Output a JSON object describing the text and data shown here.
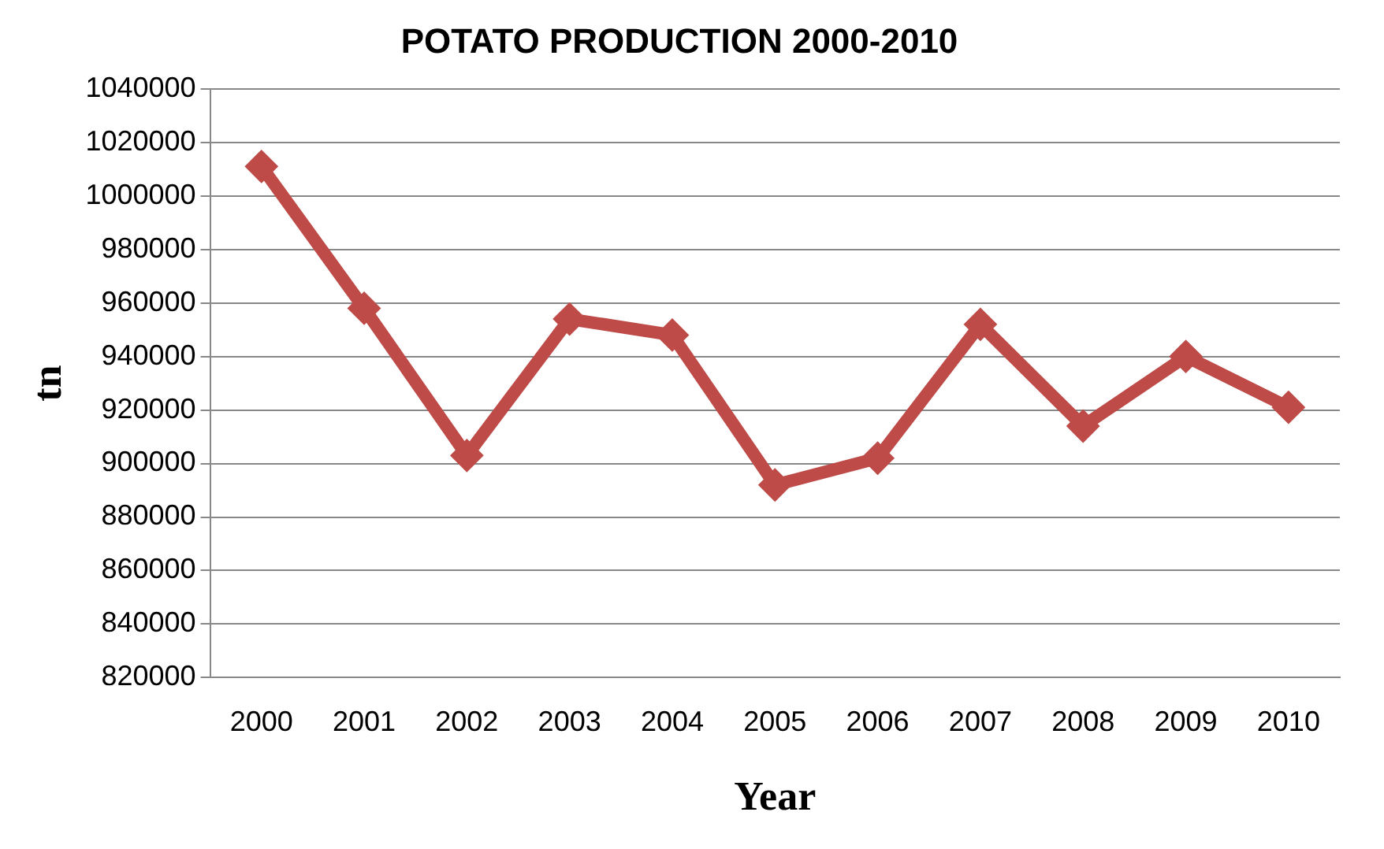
{
  "chart_data": {
    "type": "line",
    "title": "POTATO PRODUCTION 2000-2010",
    "xlabel": "Year",
    "ylabel": "tn",
    "categories": [
      "2000",
      "2001",
      "2002",
      "2003",
      "2004",
      "2005",
      "2006",
      "2007",
      "2008",
      "2009",
      "2010"
    ],
    "series": [
      {
        "color": "#be4b48",
        "values": [
          1011000,
          958000,
          903000,
          954000,
          948000,
          892000,
          902000,
          952000,
          914000,
          940000,
          921000
        ]
      }
    ],
    "ylim": [
      820000,
      1040000
    ],
    "yticks": [
      820000,
      840000,
      860000,
      880000,
      900000,
      920000,
      940000,
      960000,
      980000,
      1000000,
      1020000,
      1040000
    ],
    "grid": "y",
    "legend": false,
    "marker": "diamond",
    "line_style": "solid"
  }
}
